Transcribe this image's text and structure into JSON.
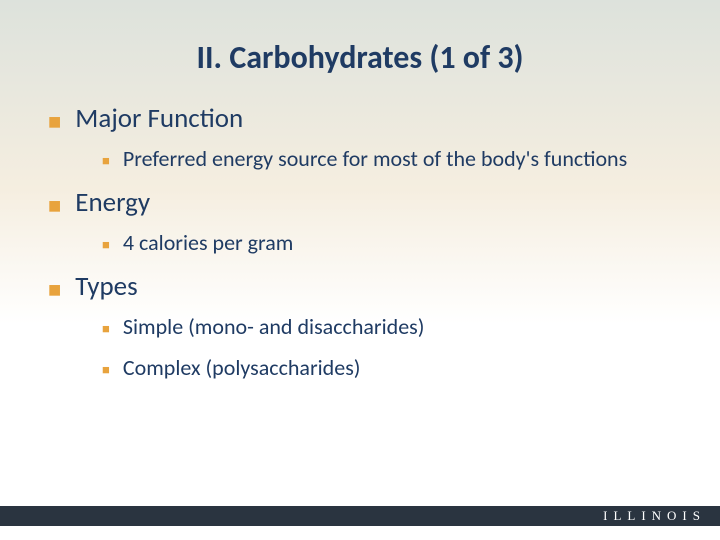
{
  "title": "II. Carbohydrates (1 of 3)",
  "colors": {
    "title_text": "#1f3b63",
    "body_text": "#1f3b63",
    "bullet": "#e8a33d",
    "footer_bg": "#2a3440",
    "footer_text": "#ffffff",
    "bg_top": "#dde2dc",
    "bg_mid": "#f5eee0",
    "bg_bottom": "#ffffff"
  },
  "typography": {
    "title_fontsize": 32,
    "main_fontsize": 27,
    "sub_fontsize": 22,
    "footer_fontsize": 13,
    "footer_letterspacing": 6
  },
  "items": [
    {
      "label": "Major Function",
      "subs": [
        "Preferred energy source for most of the body's functions"
      ]
    },
    {
      "label": "Energy",
      "subs": [
        "4 calories per gram"
      ]
    },
    {
      "label": "Types",
      "subs": [
        "Simple (mono- and disaccharides)",
        "Complex (polysaccharides)"
      ]
    }
  ],
  "footer": "ILLINOIS"
}
